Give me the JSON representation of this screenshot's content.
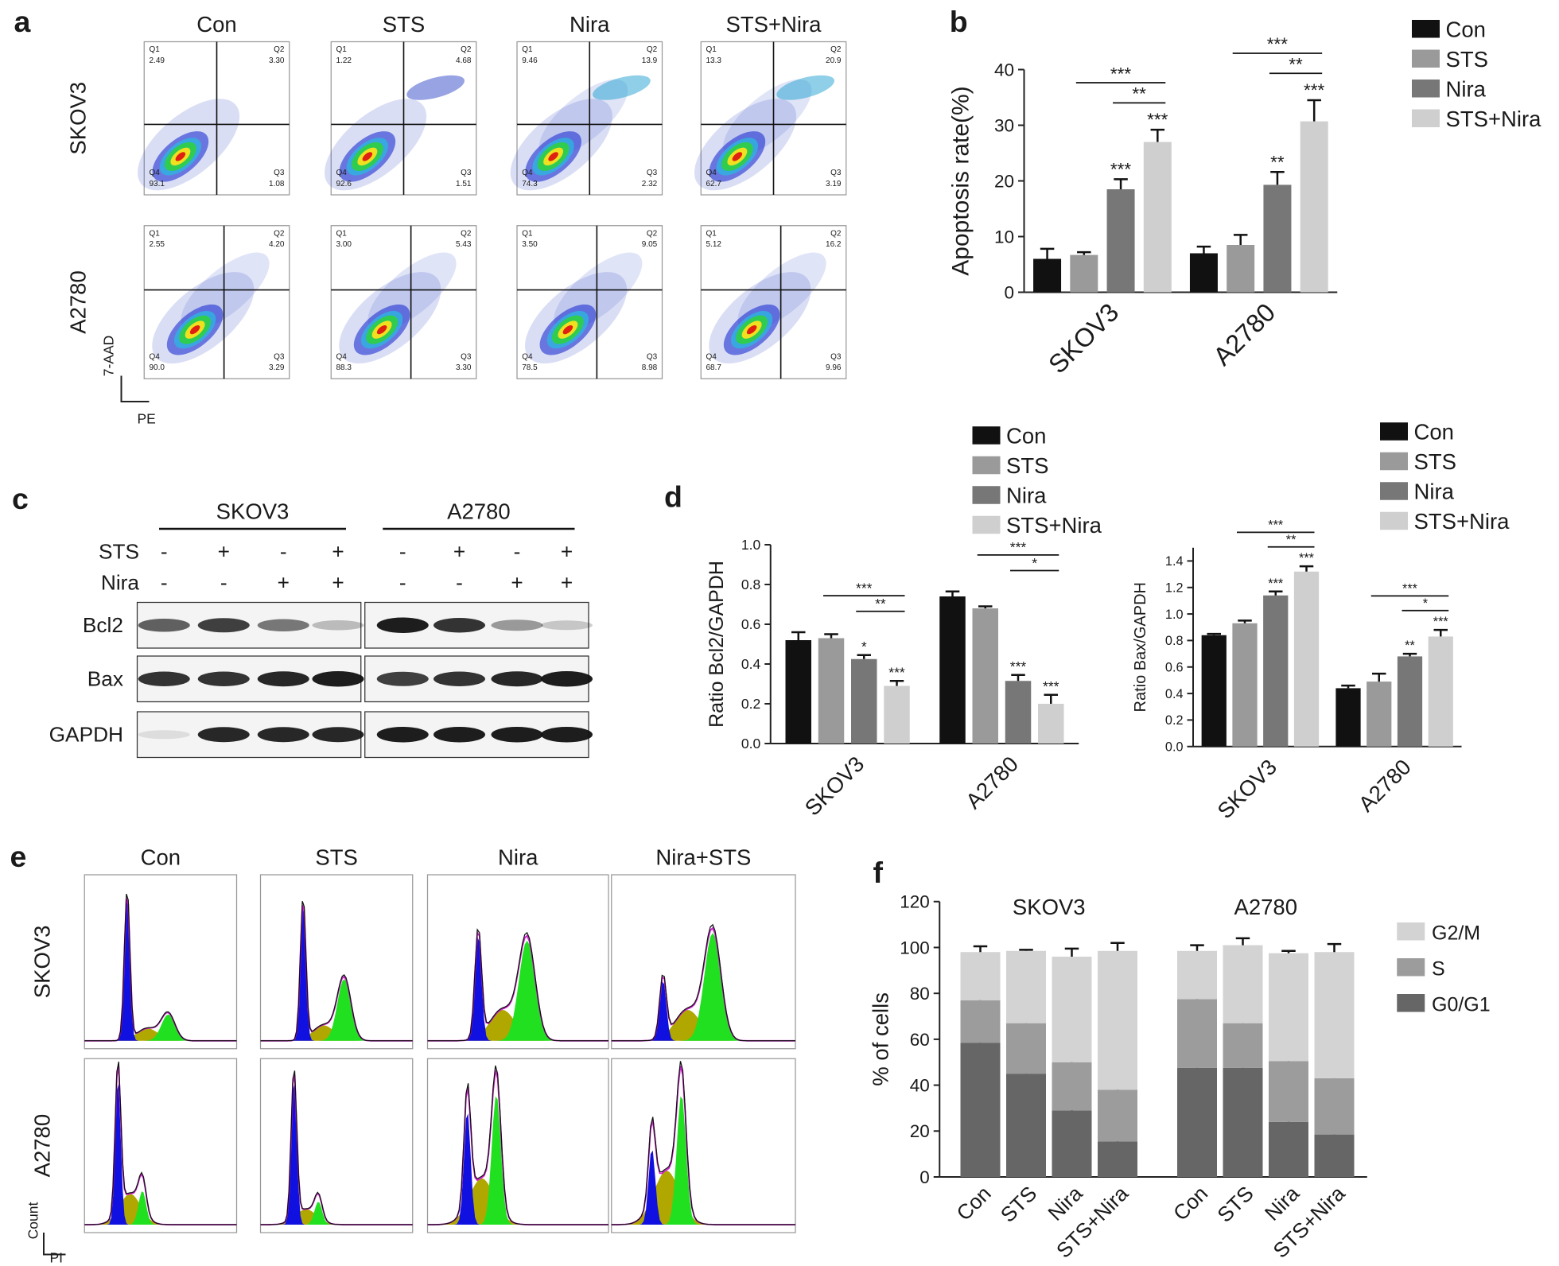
{
  "labels": [
    "a",
    "b",
    "c",
    "d",
    "e",
    "f"
  ],
  "flow": {
    "columns": [
      "Con",
      "STS",
      "Nira",
      "STS+Nira"
    ],
    "rows": [
      "SKOV3",
      "A2780"
    ],
    "quadrants": [
      "Q1",
      "Q2",
      "Q3",
      "Q4"
    ],
    "percentages": [
      [
        [
          "2.49",
          "3.30",
          "1.08",
          "93.1"
        ],
        [
          "1.22",
          "4.68",
          "1.51",
          "92.6"
        ],
        [
          "9.46",
          "13.9",
          "2.32",
          "74.3"
        ],
        [
          "13.3",
          "20.9",
          "3.19",
          "62.7"
        ]
      ],
      [
        [
          "2.55",
          "4.20",
          "3.29",
          "90.0"
        ],
        [
          "3.00",
          "5.43",
          "3.30",
          "88.3"
        ],
        [
          "3.50",
          "9.05",
          "8.98",
          "78.5"
        ],
        [
          "5.12",
          "16.2",
          "9.96",
          "68.7"
        ]
      ]
    ],
    "y_label": "7-AAD",
    "x_label": "PE"
  },
  "western": {
    "groups": [
      "SKOV3",
      "A2780"
    ],
    "treatments": [
      {
        "name": "STS",
        "signs": [
          "-",
          "+",
          "-",
          "+",
          "-",
          "+",
          "-",
          "+"
        ]
      },
      {
        "name": "Nira",
        "signs": [
          "-",
          "-",
          "+",
          "+",
          "-",
          "-",
          "+",
          "+"
        ]
      }
    ],
    "proteins": [
      "Bcl2",
      "Bax",
      "GAPDH"
    ]
  },
  "cell_cycle": {
    "columns": [
      "Con",
      "STS",
      "Nira",
      "Nira+STS"
    ],
    "rows": [
      "SKOV3",
      "A2780"
    ],
    "y_label": "Count",
    "x_label": "PI"
  },
  "chart_data": [
    {
      "type": "bar",
      "ylabel": "Apoptosis rate(%)",
      "categories": [
        "SKOV3",
        "A2780"
      ],
      "series": [
        {
          "name": "Con",
          "color": "#111111",
          "values": [
            6,
            7
          ],
          "errors": [
            1.8,
            1.2
          ],
          "significance": [
            null,
            null
          ]
        },
        {
          "name": "STS",
          "color": "#9a9a9a",
          "values": [
            6.7,
            8.5
          ],
          "errors": [
            0.5,
            1.8
          ],
          "significance": [
            null,
            null
          ]
        },
        {
          "name": "Nira",
          "color": "#777777",
          "values": [
            18.5,
            19.3
          ],
          "errors": [
            1.8,
            2.3
          ],
          "significance": [
            "***",
            "**"
          ]
        },
        {
          "name": "STS+Nira",
          "color": "#cfcfcf",
          "values": [
            27,
            30.7
          ],
          "errors": [
            2.2,
            3.8
          ],
          "significance": [
            "***",
            "***"
          ]
        }
      ],
      "comparisons": [
        [
          "***",
          "**"
        ],
        [
          "***",
          "**"
        ]
      ],
      "ylim": [
        0,
        40
      ],
      "yticks": [
        0,
        10,
        20,
        30,
        40
      ]
    },
    {
      "type": "bar",
      "ylabel": "Ratio Bcl2/GAPDH",
      "categories": [
        "SKOV3",
        "A2780"
      ],
      "series": [
        {
          "name": "Con",
          "color": "#111111",
          "values": [
            0.52,
            0.74
          ],
          "errors": [
            0.04,
            0.025
          ],
          "significance": [
            null,
            null
          ]
        },
        {
          "name": "STS",
          "color": "#9a9a9a",
          "values": [
            0.53,
            0.68
          ],
          "errors": [
            0.02,
            0.01
          ],
          "significance": [
            null,
            null
          ]
        },
        {
          "name": "Nira",
          "color": "#777777",
          "values": [
            0.425,
            0.315
          ],
          "errors": [
            0.02,
            0.03
          ],
          "significance": [
            "*",
            "***"
          ]
        },
        {
          "name": "STS+Nira",
          "color": "#cfcfcf",
          "values": [
            0.29,
            0.2
          ],
          "errors": [
            0.025,
            0.045
          ],
          "significance": [
            "***",
            "***"
          ]
        }
      ],
      "comparisons": [
        [
          "***",
          "**"
        ],
        [
          "***",
          "*"
        ]
      ],
      "ylim": [
        0,
        1
      ],
      "yticks": [
        {
          "value": 0,
          "label": "0.0"
        },
        {
          "value": 0.2,
          "label": "0.2"
        },
        {
          "value": 0.4,
          "label": "0.4"
        },
        {
          "value": 0.6,
          "label": "0.6"
        },
        {
          "value": 0.8,
          "label": "0.8"
        },
        {
          "value": 1,
          "label": "1.0"
        }
      ]
    },
    {
      "type": "bar",
      "ylabel": "Ratio Bax/GAPDH",
      "categories": [
        "SKOV3",
        "A2780"
      ],
      "series": [
        {
          "name": "Con",
          "color": "#111111",
          "values": [
            0.84,
            0.44
          ],
          "errors": [
            0.01,
            0.02
          ],
          "significance": [
            null,
            null
          ]
        },
        {
          "name": "STS",
          "color": "#9a9a9a",
          "values": [
            0.93,
            0.49
          ],
          "errors": [
            0.02,
            0.06
          ],
          "significance": [
            null,
            null
          ]
        },
        {
          "name": "Nira",
          "color": "#777777",
          "values": [
            1.14,
            0.68
          ],
          "errors": [
            0.03,
            0.02
          ],
          "significance": [
            "***",
            "**"
          ]
        },
        {
          "name": "STS+Nira",
          "color": "#cfcfcf",
          "values": [
            1.32,
            0.83
          ],
          "errors": [
            0.04,
            0.05
          ],
          "significance": [
            "***",
            "***"
          ]
        }
      ],
      "comparisons": [
        [
          "***",
          "**"
        ],
        [
          "***",
          "*"
        ]
      ],
      "ylim": [
        0,
        1.5
      ],
      "yticks": [
        {
          "value": 0,
          "label": "0.0"
        },
        {
          "value": 0.2,
          "label": "0.2"
        },
        {
          "value": 0.4,
          "label": "0.4"
        },
        {
          "value": 0.6,
          "label": "0.6"
        },
        {
          "value": 0.8,
          "label": "0.8"
        },
        {
          "value": 1,
          "label": "1.0"
        },
        {
          "value": 1.2,
          "label": "1.2"
        },
        {
          "value": 1.4,
          "label": "1.4"
        }
      ]
    },
    {
      "type": "stacked_bar",
      "ylabel": "% of cells",
      "groups": [
        "SKOV3",
        "A2780"
      ],
      "categories": [
        "Con",
        "STS",
        "Nira",
        "STS+Nira",
        "Con",
        "STS",
        "Nira",
        "STS+Nira"
      ],
      "series": [
        {
          "name": "G0/G1",
          "color": "#666666",
          "values": [
            58.5,
            45,
            29,
            15.5,
            47.5,
            47.5,
            24,
            18.5
          ],
          "errors": [
            6,
            1.5,
            5,
            1,
            6,
            1,
            2.5,
            3
          ]
        },
        {
          "name": "S",
          "color": "#9c9c9c",
          "values": [
            18.5,
            22,
            21,
            22.5,
            30,
            19.5,
            26.5,
            24.5
          ],
          "errors": [
            1.5,
            2.5,
            1.5,
            1,
            1,
            1,
            1.5,
            1.5
          ]
        },
        {
          "name": "G2/M",
          "color": "#d3d3d3",
          "values": [
            21,
            31.5,
            46,
            60.5,
            21,
            34,
            47,
            55
          ],
          "errors": [
            2.5,
            0.5,
            3.5,
            3.5,
            2.5,
            3,
            1,
            3.5
          ]
        }
      ],
      "ylim": [
        0,
        120
      ],
      "yticks": [
        0,
        20,
        40,
        60,
        80,
        100,
        120
      ]
    }
  ]
}
